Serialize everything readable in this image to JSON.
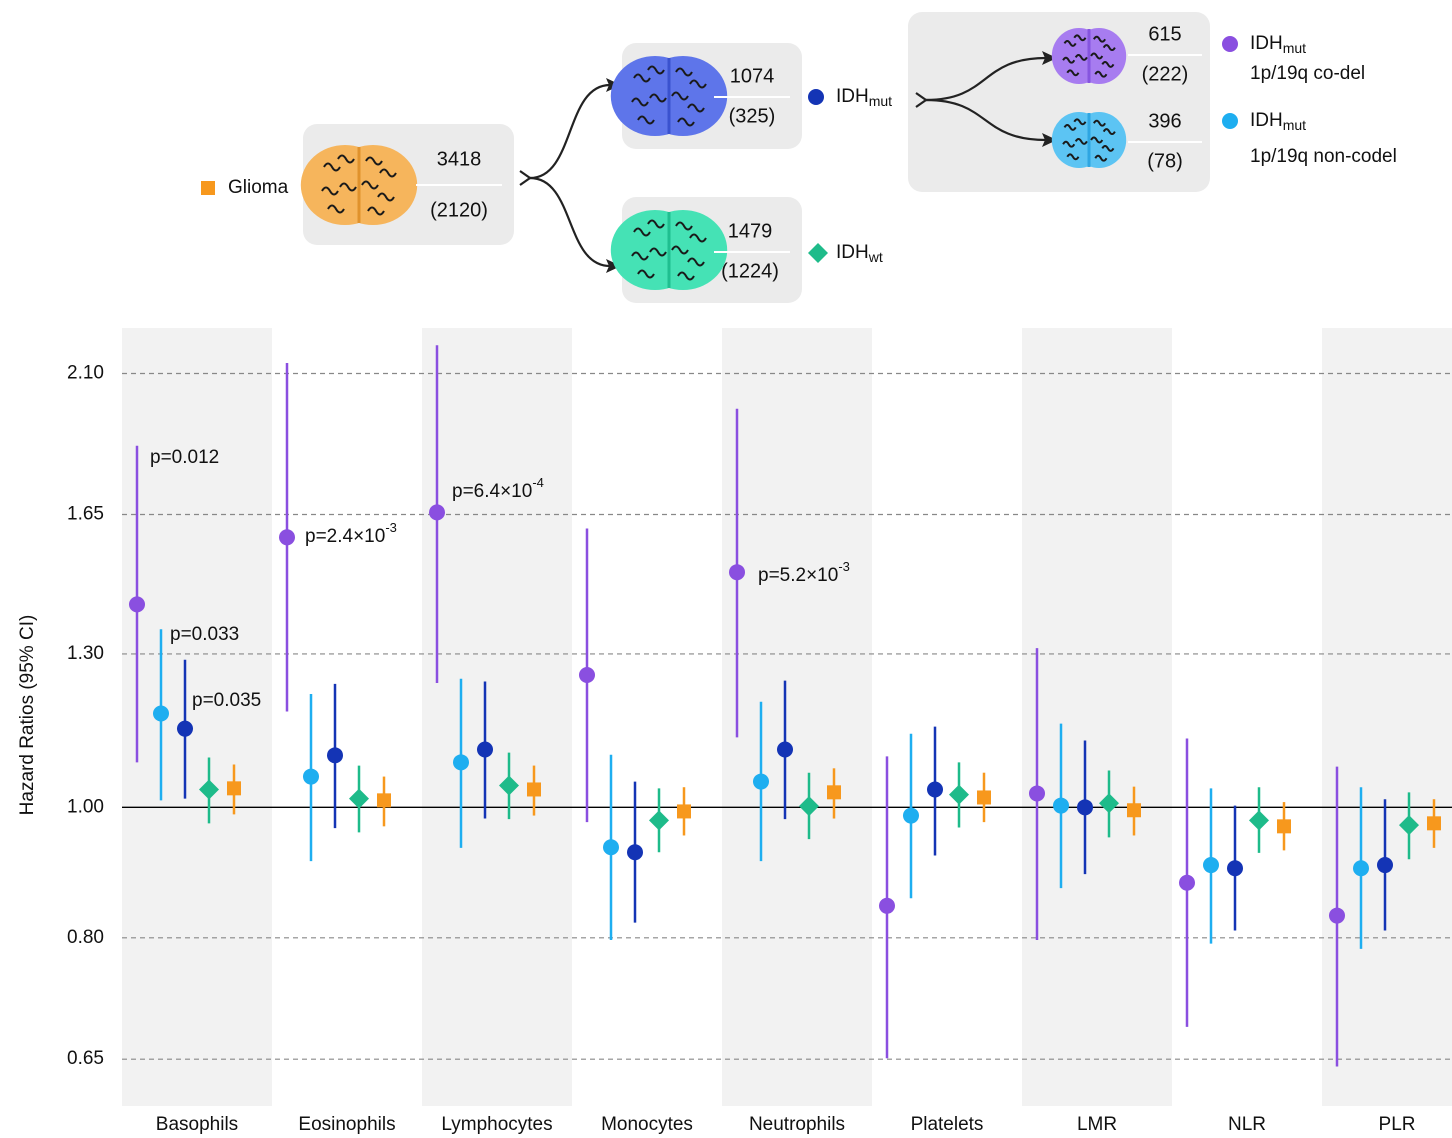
{
  "chart_data": {
    "type": "forest",
    "y_label": "Hazard Ratios (95% CI)",
    "log_y": true,
    "grid": true,
    "ylim": [
      0.6,
      2.27
    ],
    "yticks": [
      {
        "value": 0.65,
        "label": "0.65"
      },
      {
        "value": 0.8,
        "label": "0.80"
      },
      {
        "value": 1.0,
        "label": "1.00"
      },
      {
        "value": 1.3,
        "label": "1.30"
      },
      {
        "value": 1.65,
        "label": "1.65"
      },
      {
        "value": 2.1,
        "label": "2.10"
      }
    ],
    "reference": 1.0,
    "categories": [
      "Basophils",
      "Eosinophils",
      "Lymphocytes",
      "Monocytes",
      "Neutrophils",
      "Platelets",
      "LMR",
      "NLR",
      "PLR"
    ],
    "series": [
      {
        "name": "IDH",
        "subscript": "mut",
        "note": "1p/19q co-del",
        "color": "#8a4fe0",
        "marker": "circle",
        "values": [
          1.415,
          1.587,
          1.656,
          1.254,
          1.495,
          0.845,
          1.024,
          0.879,
          0.831
        ],
        "lower": [
          1.08,
          1.178,
          1.237,
          0.975,
          1.127,
          0.651,
          0.797,
          0.687,
          0.642
        ],
        "upper": [
          1.856,
          2.138,
          2.204,
          1.611,
          1.977,
          1.091,
          1.313,
          1.125,
          1.072
        ],
        "p_labels": [
          "p=0.012",
          "p=2.4×10",
          "p=6.4×10",
          null,
          "p=5.2×10",
          null,
          null,
          null,
          null
        ],
        "p_label_sup": [
          null,
          "-3",
          "-4",
          null,
          "-3",
          null,
          null,
          null,
          null
        ]
      },
      {
        "name": "IDH",
        "subscript": "mut",
        "note": "1p/19q non-codel",
        "color": "#1eaef0",
        "marker": "circle",
        "values": [
          1.174,
          1.054,
          1.08,
          0.934,
          1.045,
          0.986,
          1.003,
          0.906,
          0.901
        ],
        "lower": [
          1.012,
          0.912,
          0.933,
          0.797,
          0.912,
          0.856,
          0.871,
          0.792,
          0.785
        ],
        "upper": [
          1.356,
          1.214,
          1.246,
          1.094,
          1.198,
          1.134,
          1.154,
          1.033,
          1.035
        ],
        "p_labels": [
          "p=0.033",
          null,
          null,
          null,
          null,
          null,
          null,
          null,
          null
        ]
      },
      {
        "name": "IDH",
        "subscript": "mut",
        "color": "#1434b5",
        "marker": "circle",
        "values": [
          1.144,
          1.093,
          1.104,
          0.926,
          1.104,
          1.031,
          1.0,
          0.901,
          0.906
        ],
        "lower": [
          1.015,
          0.965,
          0.981,
          0.821,
          0.98,
          0.921,
          0.892,
          0.81,
          0.81
        ],
        "upper": [
          1.287,
          1.235,
          1.24,
          1.045,
          1.242,
          1.148,
          1.121,
          1.003,
          1.014
        ],
        "p_labels": [
          "p=0.035",
          null,
          null,
          null,
          null,
          null,
          null,
          null,
          null
        ]
      },
      {
        "name": "IDH",
        "subscript": "wt",
        "color": "#1ebb8a",
        "marker": "diamond",
        "values": [
          1.031,
          1.015,
          1.038,
          0.978,
          1.002,
          1.022,
          1.007,
          0.978,
          0.97
        ],
        "lower": [
          0.973,
          0.958,
          0.98,
          0.926,
          0.947,
          0.966,
          0.95,
          0.925,
          0.915
        ],
        "upper": [
          1.089,
          1.074,
          1.098,
          1.033,
          1.061,
          1.08,
          1.065,
          1.035,
          1.026
        ]
      },
      {
        "name": "Glioma",
        "color": "#f7981d",
        "marker": "square",
        "values": [
          1.033,
          1.012,
          1.031,
          0.993,
          1.026,
          1.017,
          0.995,
          0.968,
          0.973
        ],
        "lower": [
          0.988,
          0.968,
          0.986,
          0.953,
          0.981,
          0.975,
          0.953,
          0.929,
          0.933
        ],
        "upper": [
          1.076,
          1.054,
          1.074,
          1.035,
          1.069,
          1.061,
          1.036,
          1.009,
          1.014
        ]
      }
    ]
  },
  "diagram": {
    "nodes": [
      {
        "count": "3418",
        "events": "(2120)"
      },
      {
        "count": "1074",
        "events": "(325)"
      },
      {
        "count": "1479",
        "events": "(1224)"
      },
      {
        "count": "615",
        "events": "(222)"
      },
      {
        "count": "396",
        "events": "(78)"
      }
    ]
  }
}
